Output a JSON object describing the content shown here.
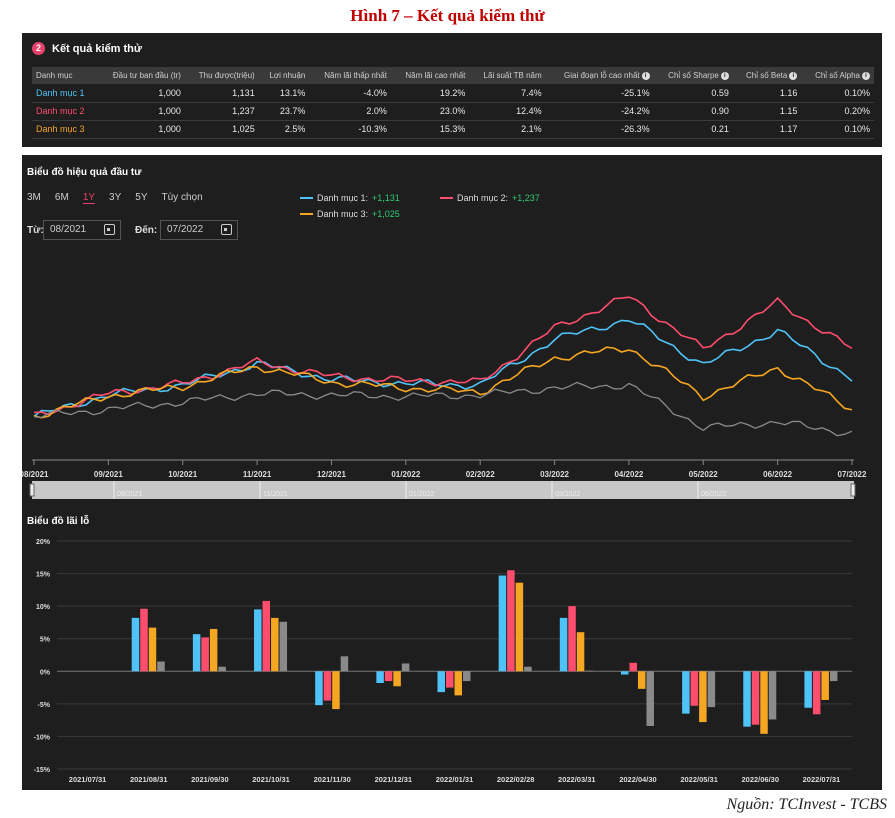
{
  "figure_title": "Hình 7 – Kết quả kiểm thử",
  "source": "Nguồn: TCInvest - TCBS",
  "results": {
    "badge": "2",
    "title": "Kết quả kiểm thử",
    "columns": [
      "Danh mục",
      "Đầu tư ban đầu (tr)",
      "Thu được(triệu)",
      "Lợi nhuận",
      "Năm lãi thấp nhất",
      "Năm lãi cao nhất",
      "Lãi suất TB năm",
      "Giai đoạn lỗ cao nhất",
      "Chỉ số Sharpe",
      "Chỉ số Beta",
      "Chỉ số Alpha"
    ],
    "info_icon_columns": [
      7,
      8,
      9,
      10
    ],
    "rows": [
      {
        "name": "Danh mục 1",
        "color": "#4fc3f7",
        "cells": [
          "1,000",
          "1,131",
          "13.1%",
          "-4.0%",
          "19.2%",
          "7.4%",
          "-25.1%",
          "0.59",
          "1.16",
          "0.10%"
        ]
      },
      {
        "name": "Danh mục 2",
        "color": "#ff4d6d",
        "cells": [
          "1,000",
          "1,237",
          "23.7%",
          "2.0%",
          "23.0%",
          "12.4%",
          "-24.2%",
          "0.90",
          "1.15",
          "0.20%"
        ]
      },
      {
        "name": "Danh mục 3",
        "color": "#f5a623",
        "cells": [
          "1,000",
          "1,025",
          "2.5%",
          "-10.3%",
          "15.3%",
          "2.1%",
          "-26.3%",
          "0.21",
          "1.17",
          "0.10%"
        ]
      }
    ]
  },
  "performance": {
    "title": "Biểu đồ hiệu quả đầu tư",
    "periods": [
      "3M",
      "6M",
      "1Y",
      "3Y",
      "5Y",
      "Tùy chọn"
    ],
    "active_period": "1Y",
    "from_label": "Từ:",
    "from_value": "08/2021",
    "to_label": "Đến:",
    "to_value": "07/2022",
    "legend": [
      {
        "name": "Danh mục 1:",
        "value": "+1,131",
        "color": "#4fc3f7"
      },
      {
        "name": "Danh mục 2:",
        "value": "+1,237",
        "color": "#ff4d6d"
      },
      {
        "name": "Danh mục 3:",
        "value": "+1,025",
        "color": "#f5a623"
      }
    ],
    "x_ticks": [
      "08/2021",
      "09/2021",
      "10/2021",
      "11/2021",
      "12/2021",
      "01/2022",
      "02/2022",
      "03/2022",
      "04/2022",
      "05/2022",
      "06/2022",
      "07/2022"
    ],
    "navigator_ticks": [
      "09/2021",
      "11/2021",
      "01/2022",
      "03/2022",
      "05/2022"
    ],
    "benchmark_color": "#8a8a8a"
  },
  "chart_data": [
    {
      "type": "line",
      "title": "Biểu đồ hiệu quả đầu tư",
      "x": [
        "08/2021",
        "09/2021",
        "10/2021",
        "11/2021",
        "12/2021",
        "01/2022",
        "02/2022",
        "03/2022",
        "04/2022",
        "05/2022",
        "06/2022",
        "07/2022"
      ],
      "series": [
        {
          "name": "Danh mục 1",
          "color": "#4fc3f7",
          "values": [
            1000,
            1075,
            1110,
            1185,
            1130,
            1115,
            1110,
            1270,
            1340,
            1180,
            1300,
            1131
          ]
        },
        {
          "name": "Danh mục 2",
          "color": "#ff4d6d",
          "values": [
            1000,
            1080,
            1115,
            1190,
            1140,
            1125,
            1120,
            1310,
            1420,
            1235,
            1400,
            1237
          ]
        },
        {
          "name": "Danh mục 3",
          "color": "#f5a623",
          "values": [
            1000,
            1072,
            1105,
            1175,
            1120,
            1100,
            1085,
            1205,
            1240,
            1070,
            1170,
            1025
          ]
        },
        {
          "color": "#8a8a8a",
          "values": [
            1000,
            1025,
            1050,
            1080,
            1075,
            1070,
            1075,
            1100,
            1110,
            960,
            980,
            940
          ]
        }
      ]
    },
    {
      "type": "bar",
      "title": "Biểu đồ lãi lỗ",
      "categories": [
        "2021/07/31",
        "2021/08/31",
        "2021/09/30",
        "2021/10/31",
        "2021/11/30",
        "2021/12/31",
        "2022/01/31",
        "2022/02/28",
        "2022/03/31",
        "2022/04/30",
        "2022/05/31",
        "2022/06/30",
        "2022/07/31"
      ],
      "y_ticks": [
        "20%",
        "15%",
        "10%",
        "5%",
        "0%",
        "-5%",
        "-10%",
        "-15%"
      ],
      "ylim": [
        -15,
        20
      ],
      "series": [
        {
          "name": "Danh mục 1",
          "color": "#4fc3f7",
          "values": [
            null,
            8.2,
            5.7,
            9.5,
            -5.2,
            -1.8,
            -3.2,
            14.7,
            8.2,
            -0.5,
            -6.5,
            -8.5,
            -5.6
          ]
        },
        {
          "name": "Danh mục 2",
          "color": "#ff4d6d",
          "values": [
            null,
            9.6,
            5.2,
            10.8,
            -4.5,
            -1.5,
            -2.5,
            15.5,
            10.0,
            1.3,
            -5.3,
            -8.2,
            -6.6
          ]
        },
        {
          "name": "Danh mục 3",
          "color": "#f5a623",
          "values": [
            null,
            6.7,
            6.5,
            8.2,
            -5.8,
            -2.3,
            -3.7,
            13.6,
            6.0,
            -2.7,
            -7.8,
            -9.6,
            -4.4
          ]
        },
        {
          "color": "#8a8a8a",
          "values": [
            null,
            1.5,
            0.7,
            7.6,
            2.3,
            1.2,
            -1.5,
            0.7,
            0.1,
            -8.4,
            -5.5,
            -7.4,
            -1.5
          ]
        }
      ]
    }
  ],
  "pnl": {
    "title": "Biểu đồ lãi lỗ"
  }
}
